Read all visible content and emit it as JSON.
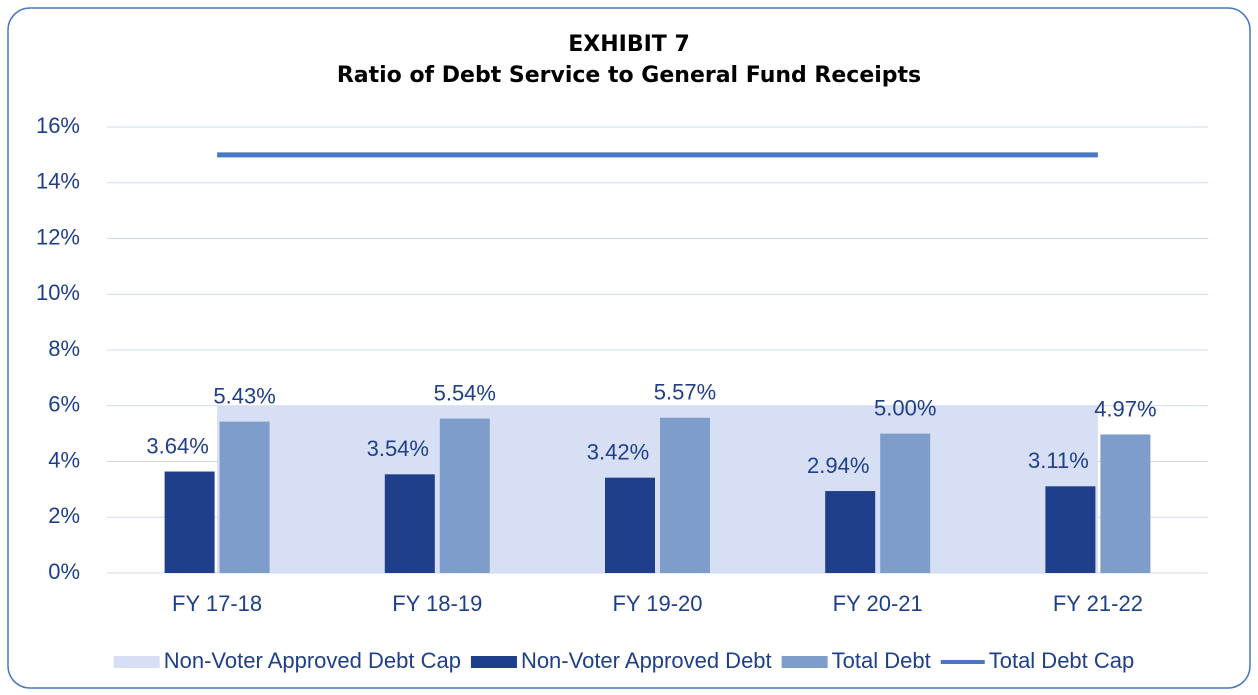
{
  "chart_data": {
    "type": "bar",
    "title": "EXHIBIT 7",
    "subtitle": "Ratio of Debt Service to General Fund Receipts",
    "categories": [
      "FY 17-18",
      "FY 18-19",
      "FY 19-20",
      "FY 20-21",
      "FY 21-22"
    ],
    "series": [
      {
        "name": "Non-Voter Approved Debt Cap",
        "type": "area",
        "color": "#d6dff4",
        "values": [
          6,
          6,
          6,
          6,
          6
        ]
      },
      {
        "name": "Non-Voter Approved Debt",
        "type": "bar",
        "color": "#1f3f8a",
        "values": [
          3.64,
          3.54,
          3.42,
          2.94,
          3.11
        ],
        "value_labels": [
          "3.64%",
          "3.54%",
          "3.42%",
          "2.94%",
          "3.11%"
        ],
        "label_color": "#000000"
      },
      {
        "name": "Total Debt",
        "type": "bar",
        "color": "#7f9dca",
        "values": [
          5.43,
          5.54,
          5.57,
          5.0,
          4.97
        ],
        "value_labels": [
          "5.43%",
          "5.54%",
          "5.57%",
          "5.00%",
          "4.97%"
        ],
        "label_color": "#4472c4"
      },
      {
        "name": "Total Debt Cap",
        "type": "line",
        "color": "#4a76c2",
        "values": [
          15,
          15,
          15,
          15,
          15
        ]
      }
    ],
    "ylim": [
      0,
      16
    ],
    "yticks": [
      {
        "value": 0,
        "label": "0%"
      },
      {
        "value": 2,
        "label": "2%"
      },
      {
        "value": 4,
        "label": "4%"
      },
      {
        "value": 6,
        "label": "6%"
      },
      {
        "value": 8,
        "label": "8%"
      },
      {
        "value": 10,
        "label": "10%"
      },
      {
        "value": 12,
        "label": "12%"
      },
      {
        "value": 14,
        "label": "14%"
      },
      {
        "value": 16,
        "label": "16%"
      }
    ],
    "grid": true,
    "legend": "bottom"
  }
}
